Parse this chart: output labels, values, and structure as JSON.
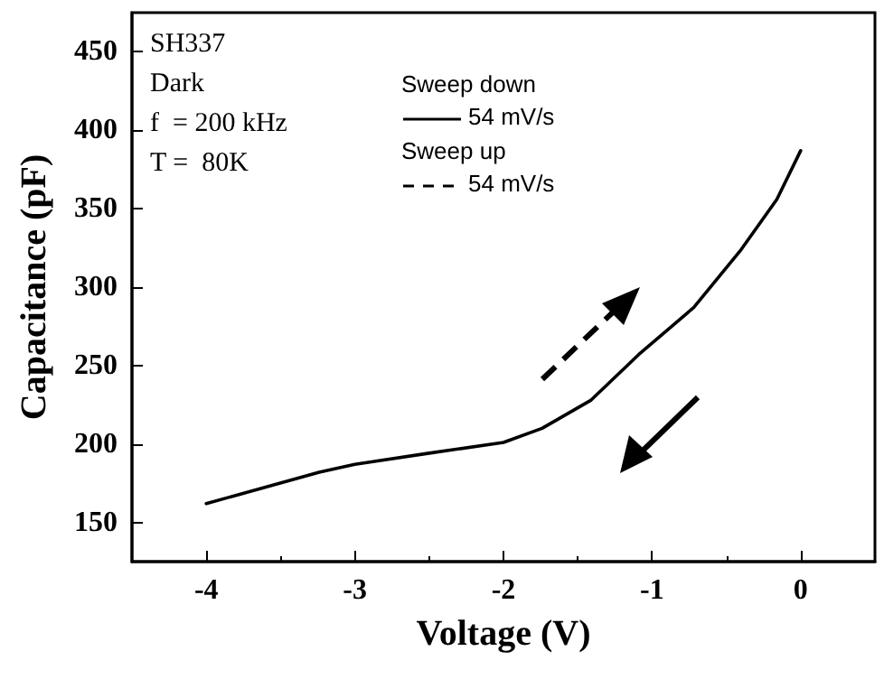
{
  "chart_data": {
    "type": "line",
    "xlabel": "Voltage (V)",
    "ylabel": "Capacitance (pF)",
    "annotations": [
      "SH337",
      "Dark",
      "f  = 200 kHz",
      "T =  80K",
      "Sweep down",
      "Sweep up"
    ],
    "series": [
      {
        "name": "54 mV/s",
        "color": "#000000",
        "line_style": "solid",
        "x": [
          -4,
          -3.24,
          -3.0,
          -2.51,
          -2.0,
          -1.74,
          -1.41,
          -1.09,
          -0.72,
          -0.4,
          -0.16,
          0
        ],
        "values": [
          162,
          182,
          187,
          194,
          201,
          210,
          228,
          257,
          287,
          324,
          356,
          387
        ]
      },
      {
        "name": "54 mV/s",
        "color": "#000000",
        "line_style": "dashed"
      }
    ],
    "xlim": [
      -4.5,
      0.5
    ],
    "xticks": [
      -4,
      -3,
      -2,
      -1,
      0
    ],
    "ylim": [
      125,
      475
    ],
    "yticks": [
      150,
      200,
      250,
      300,
      350,
      400,
      450
    ],
    "legend": "top",
    "marker": "none",
    "grid": false
  }
}
